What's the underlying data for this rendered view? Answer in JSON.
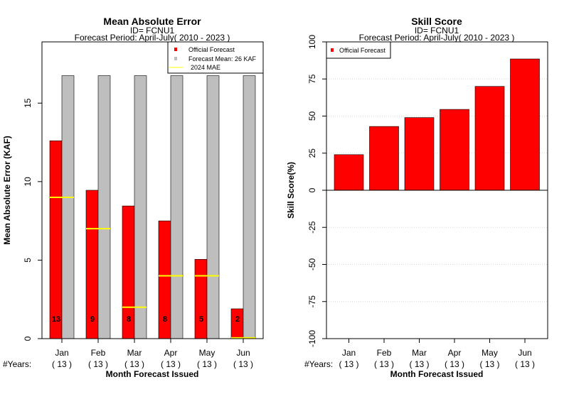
{
  "chart_data": [
    {
      "type": "bar",
      "title": "Mean Absolute Error",
      "subtitle_id": "ID= FCNU1",
      "subtitle_period": "Forecast Period: April-July( 2010 - 2023 )",
      "ylabel": "Mean Absolute Error (KAF)",
      "xlabel": "Month Forecast Issued",
      "ylim": [
        0,
        18.9
      ],
      "yticks": [
        0,
        5,
        10,
        15
      ],
      "categories": [
        "Jan",
        "Feb",
        "Mar",
        "Apr",
        "May",
        "Jun"
      ],
      "years_label": "#Years:",
      "years": [
        "( 13 )",
        "( 13 )",
        "( 13 )",
        "( 13 )",
        "( 13 )",
        "( 13 )"
      ],
      "series": [
        {
          "name": "Official Forecast",
          "color": "#ff0000",
          "values": [
            12.6,
            9.45,
            8.45,
            7.5,
            5.05,
            1.9
          ],
          "bar_labels": [
            "13",
            "9",
            "8",
            "8",
            "5",
            "2"
          ]
        },
        {
          "name": "Forecast Mean: 26 KAF",
          "color": "#bebebe",
          "values": [
            16.75,
            16.75,
            16.75,
            16.75,
            16.75,
            16.75
          ]
        },
        {
          "name": "2024  MAE",
          "color": "#ffff00",
          "values": [
            9.0,
            7.0,
            2.0,
            4.0,
            4.0,
            0.05
          ]
        }
      ],
      "legend_position": "top-right",
      "grid": false
    },
    {
      "type": "bar",
      "title": "Skill Score",
      "subtitle_id": "ID= FCNU1",
      "subtitle_period": "Forecast Period: April-July( 2010 - 2023 )",
      "ylabel": "Skill Score(%)",
      "xlabel": "Month Forecast Issued",
      "ylim": [
        -100,
        100
      ],
      "yticks": [
        -100,
        -75,
        -50,
        -25,
        0,
        25,
        50,
        75,
        100
      ],
      "categories": [
        "Jan",
        "Feb",
        "Mar",
        "Apr",
        "May",
        "Jun"
      ],
      "years_label": "#Years:",
      "years": [
        "( 13 )",
        "( 13 )",
        "( 13 )",
        "( 13 )",
        "( 13 )",
        "( 13 )"
      ],
      "series": [
        {
          "name": "Official Forecast",
          "color": "#ff0000",
          "values": [
            24,
            43,
            49,
            54.5,
            70,
            88.5
          ]
        }
      ],
      "legend_position": "top-left",
      "grid": true
    }
  ]
}
